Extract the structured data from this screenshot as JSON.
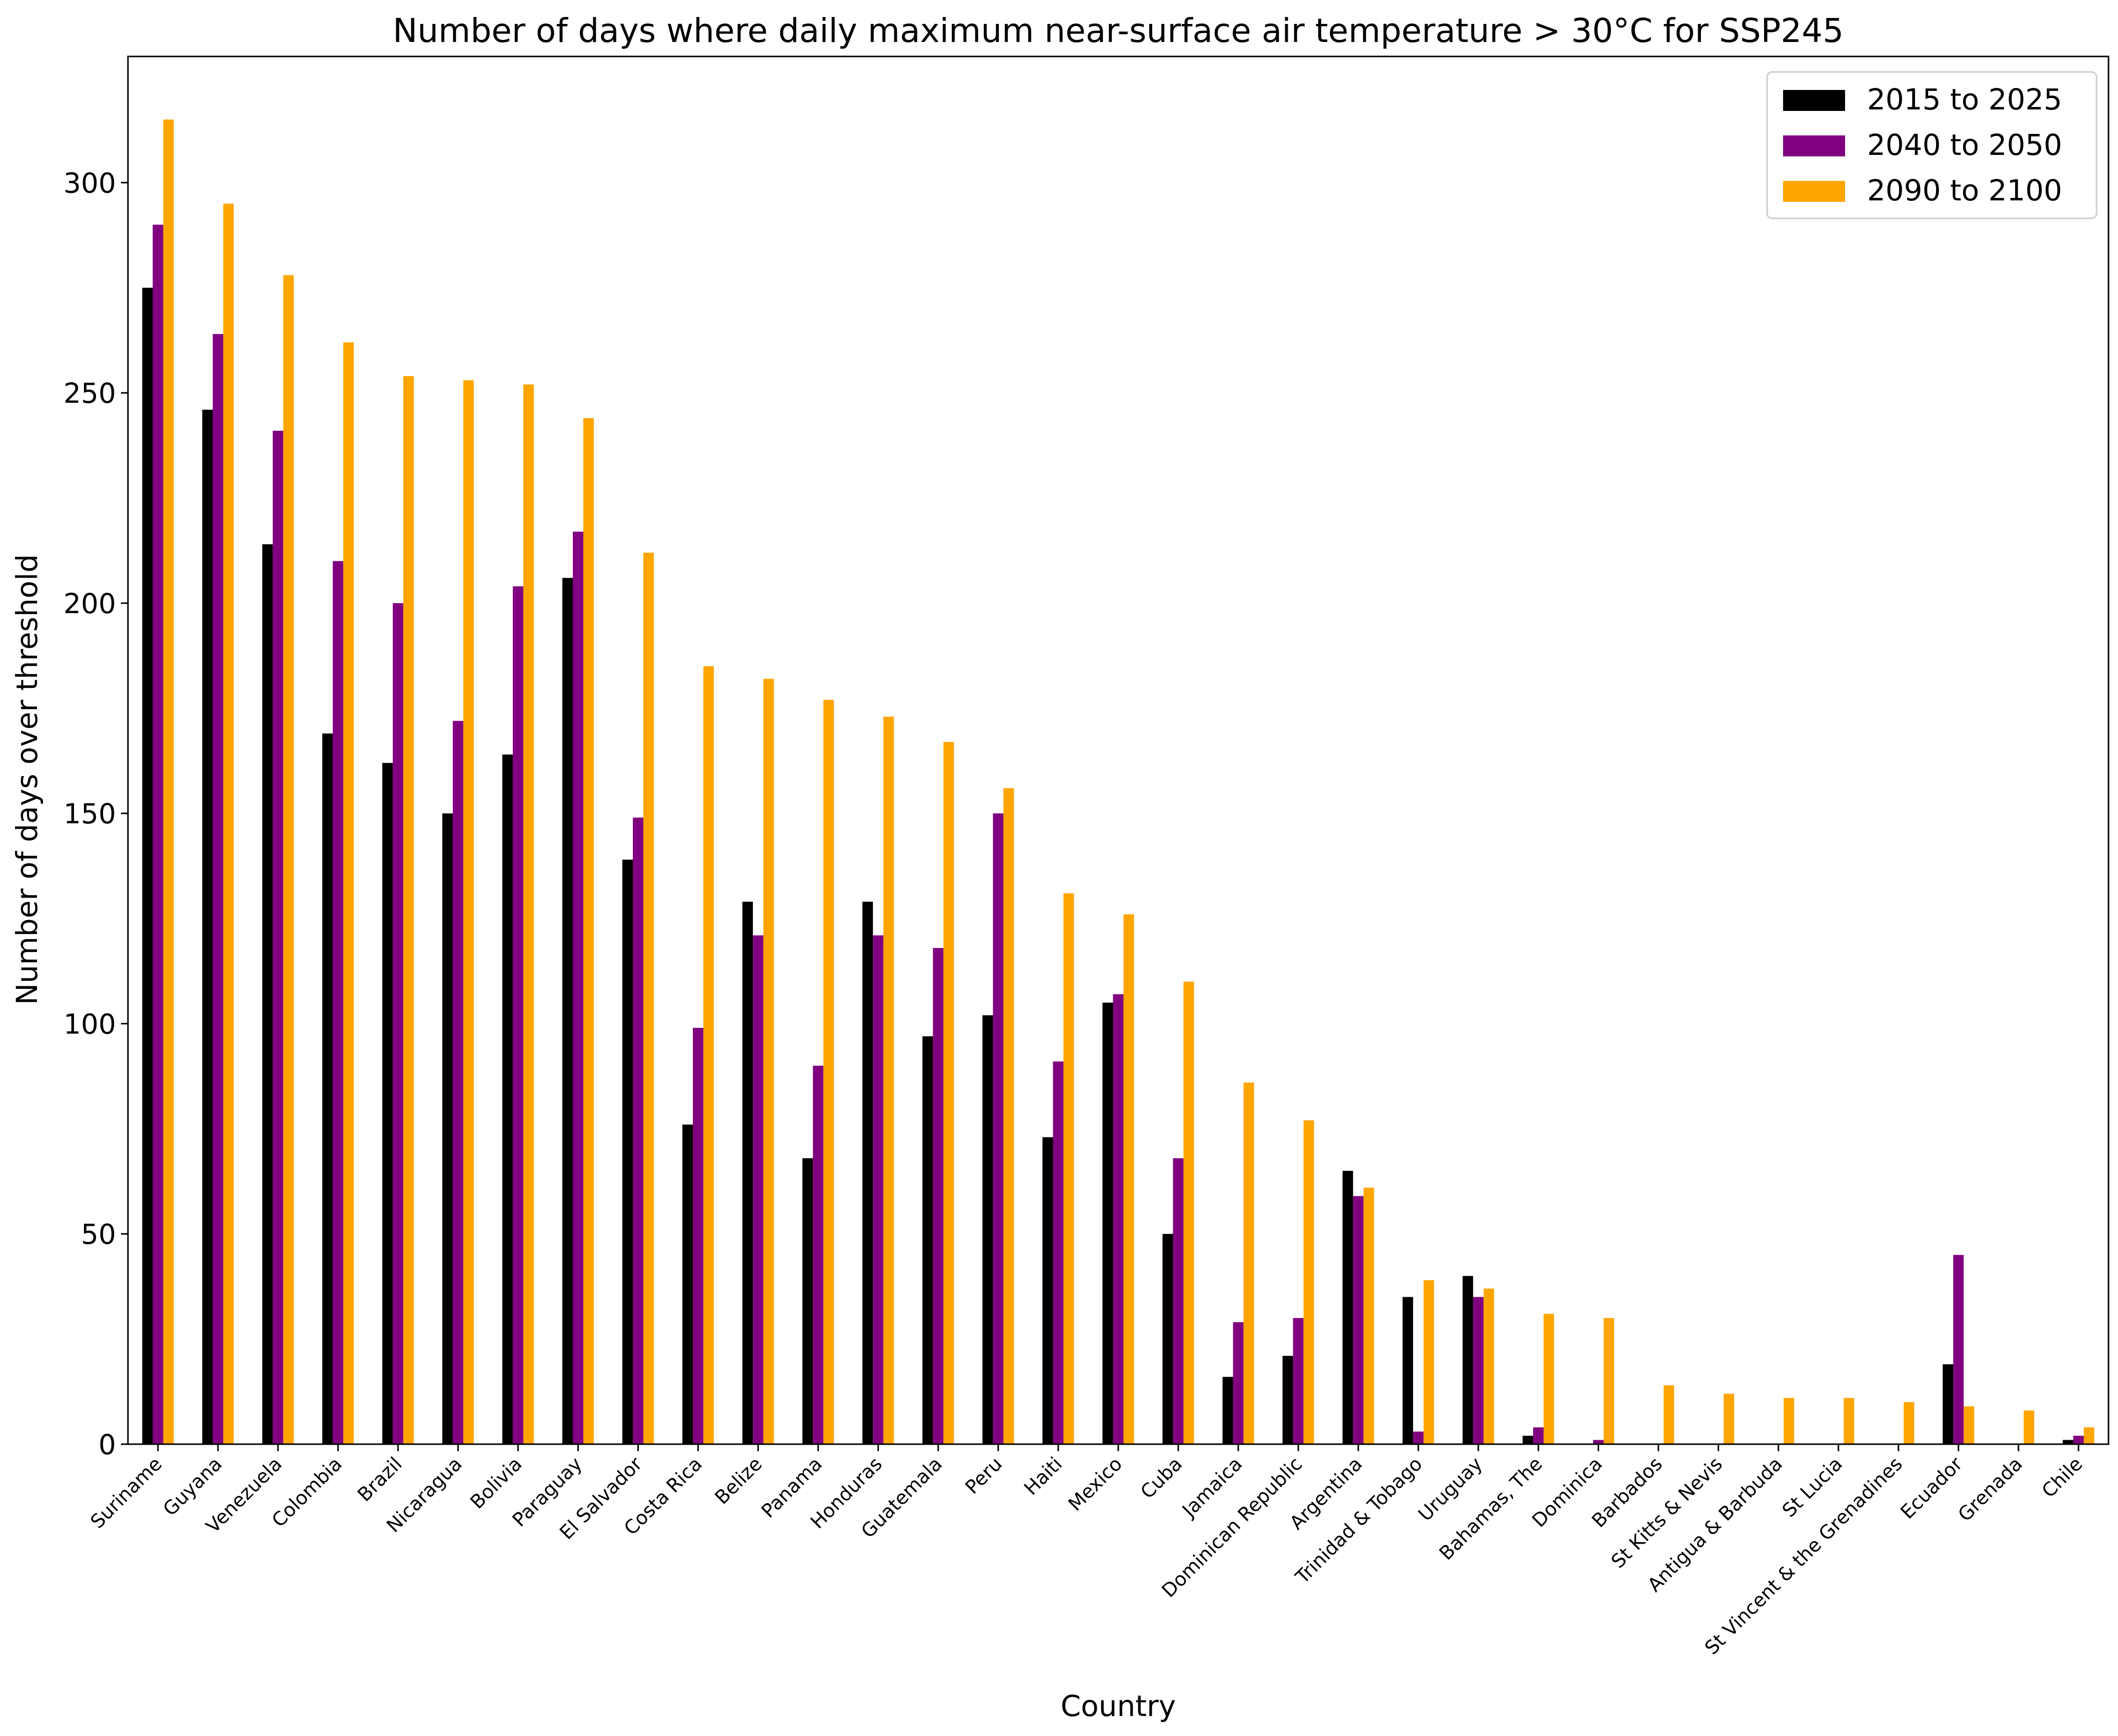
{
  "chart_data": {
    "type": "bar",
    "title": "Number of days where daily maximum near-surface air temperature > 30°C for SSP245",
    "xlabel": "Country",
    "ylabel": "Number of days over threshold",
    "ylim": [
      0,
      330
    ],
    "yticks": [
      0,
      50,
      100,
      150,
      200,
      250,
      300
    ],
    "grid": false,
    "legend_position": "top-right",
    "categories": [
      "Suriname",
      "Guyana",
      "Venezuela",
      "Colombia",
      "Brazil",
      "Nicaragua",
      "Bolivia",
      "Paraguay",
      "El Salvador",
      "Costa Rica",
      "Belize",
      "Panama",
      "Honduras",
      "Guatemala",
      "Peru",
      "Haiti",
      "Mexico",
      "Cuba",
      "Jamaica",
      "Dominican Republic",
      "Argentina",
      "Trinidad & Tobago",
      "Uruguay",
      "Bahamas, The",
      "Dominica",
      "Barbados",
      "St Kitts & Nevis",
      "Antigua & Barbuda",
      "St Lucia",
      "St Vincent & the Grenadines",
      "Ecuador",
      "Grenada",
      "Chile"
    ],
    "series": [
      {
        "name": "2015 to 2025",
        "color": "#000000",
        "values": [
          275,
          246,
          214,
          169,
          162,
          150,
          164,
          206,
          139,
          76,
          129,
          68,
          129,
          97,
          102,
          73,
          105,
          50,
          16,
          21,
          65,
          35,
          40,
          2,
          0,
          0,
          0,
          0,
          0,
          0,
          19,
          0,
          1
        ]
      },
      {
        "name": "2040 to 2050",
        "color": "#800080",
        "values": [
          290,
          264,
          241,
          210,
          200,
          172,
          204,
          217,
          149,
          99,
          121,
          90,
          121,
          118,
          150,
          91,
          107,
          68,
          29,
          30,
          59,
          3,
          35,
          4,
          1,
          0,
          0,
          0,
          0,
          0,
          45,
          0,
          2
        ]
      },
      {
        "name": "2090 to 2100",
        "color": "#FFA500",
        "values": [
          315,
          295,
          278,
          262,
          254,
          253,
          252,
          244,
          212,
          185,
          182,
          177,
          173,
          167,
          156,
          131,
          126,
          110,
          86,
          77,
          61,
          39,
          37,
          31,
          30,
          14,
          12,
          11,
          11,
          10,
          9,
          8,
          4
        ]
      }
    ]
  }
}
